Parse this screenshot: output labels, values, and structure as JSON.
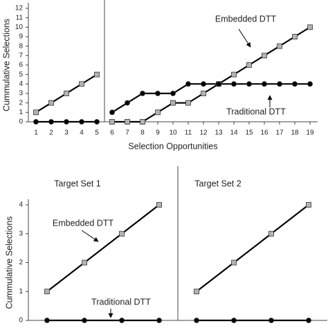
{
  "chart_data": [
    {
      "type": "line",
      "x_label": "Selection Opportunities",
      "y_label": "Cummulative Selections",
      "x": [
        1,
        2,
        3,
        4,
        5,
        6,
        7,
        8,
        9,
        10,
        11,
        12,
        13,
        14,
        15,
        16,
        17,
        18,
        19
      ],
      "xlim": [
        0.5,
        19.5
      ],
      "xticks": [
        1,
        2,
        3,
        4,
        5,
        6,
        7,
        8,
        9,
        10,
        11,
        12,
        13,
        14,
        15,
        16,
        17,
        18,
        19
      ],
      "ylim": [
        0,
        12
      ],
      "yticks": [
        0,
        1,
        2,
        3,
        4,
        5,
        6,
        7,
        8,
        9,
        10,
        11,
        12
      ],
      "phase_lines": [
        5.5
      ],
      "series": [
        {
          "name": "Embedded DTT",
          "color": "#000000",
          "marker": "square",
          "marker_color": "#b3b3b3",
          "values": [
            1,
            2,
            3,
            4,
            5,
            0,
            0,
            0,
            1,
            2,
            2,
            3,
            4,
            5,
            6,
            7,
            8,
            9,
            10
          ]
        },
        {
          "name": "Traditional DTT",
          "color": "#000000",
          "marker": "circle",
          "marker_color": "#000000",
          "values": [
            0,
            0,
            0,
            0,
            0,
            1,
            2,
            3,
            3,
            3,
            4,
            4,
            4,
            4,
            4,
            4,
            4,
            4,
            4
          ]
        }
      ]
    },
    {
      "type": "line",
      "y_label": "Cummulative Selections",
      "x": [
        1,
        2,
        3,
        4,
        5,
        6,
        7,
        8
      ],
      "xlim": [
        0.5,
        8.5
      ],
      "ylim": [
        0,
        4
      ],
      "yticks": [
        0,
        1,
        2,
        3,
        4
      ],
      "phase_lines": [
        4.5
      ],
      "annotations": [
        "Target Set 1",
        "Target Set 2"
      ],
      "series": [
        {
          "name": "Embedded DTT",
          "color": "#000000",
          "marker": "square",
          "marker_color": "#b3b3b3",
          "values": [
            1,
            2,
            3,
            4,
            1,
            2,
            3,
            4
          ]
        },
        {
          "name": "Traditional DTT",
          "color": "#000000",
          "marker": "circle",
          "marker_color": "#000000",
          "values": [
            0,
            0,
            0,
            0,
            0,
            0,
            0,
            0
          ]
        }
      ]
    }
  ]
}
